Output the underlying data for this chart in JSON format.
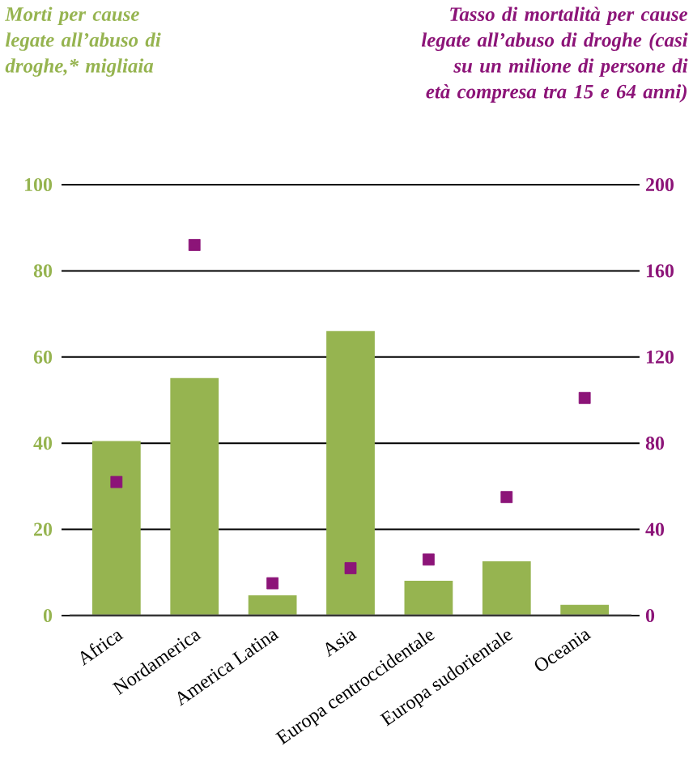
{
  "chart_data": {
    "type": "bar",
    "annotations": [
      "Morti per cause legate all’abuso di droghe,* migliaia",
      "Tasso di mortalità per cause legate all’abuso di droghe (casi su un milione di persone di età compresa tra 15 e 64 anni)"
    ],
    "categories": [
      "Africa",
      "Nordamerica",
      "America Latina",
      "Asia",
      "Europa centroccidentale",
      "Europa sudorientale",
      "Oceania"
    ],
    "series": [
      {
        "color": "#96b450",
        "values": [
          40.5,
          55.1,
          4.7,
          66.0,
          8.1,
          12.6,
          2.5
        ]
      },
      {
        "type": "scatter",
        "axis": "y2",
        "marker": "square",
        "color": "#8c1478",
        "values": [
          62,
          172,
          15,
          22,
          26,
          55,
          101
        ]
      }
    ],
    "ylim": [
      0,
      100
    ],
    "yticks": [
      0,
      20,
      40,
      60,
      80,
      100
    ],
    "y2lim": [
      0,
      200
    ],
    "y2ticks": [
      0,
      40,
      80,
      120,
      160,
      200
    ],
    "grid": "y"
  }
}
